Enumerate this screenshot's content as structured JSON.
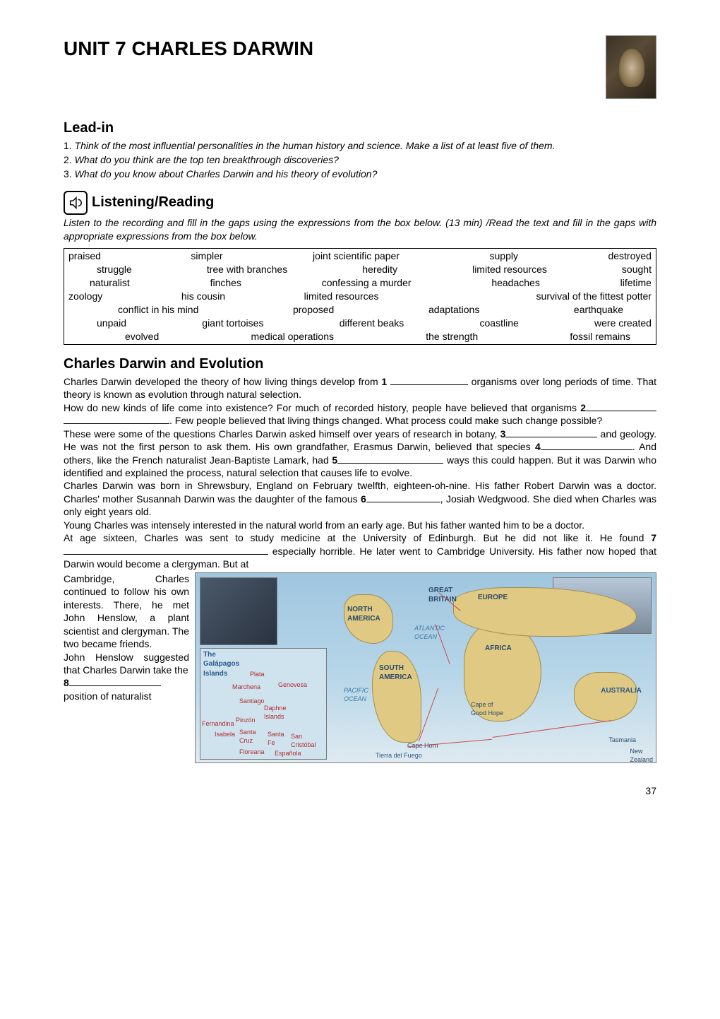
{
  "title": "UNIT 7    CHARLES DARWIN",
  "leadin": {
    "heading": "Lead-in",
    "items": [
      {
        "num": "1.",
        "text": "Think of the most influential personalities in the human history and science. Make a list of at least five of them."
      },
      {
        "num": "2.",
        "text": "What do you think are the top ten breakthrough discoveries?"
      },
      {
        "num": "3.",
        "text": "What do you know about Charles Darwin and his theory of evolution?"
      }
    ]
  },
  "listening": {
    "heading": "Listening/Reading",
    "intro": "Listen to the recording and fill in the gaps using the expressions from the box below. (13 min) /Read the text and fill in the gaps with appropriate expressions from the box below."
  },
  "wordbox": {
    "rows": [
      [
        "praised",
        "simpler",
        "joint scientific paper",
        "supply",
        "destroyed"
      ],
      [
        "struggle",
        "tree with branches",
        "heredity",
        "limited resources",
        "sought"
      ],
      [
        "naturalist",
        "finches",
        "confessing a murder",
        "headaches",
        "lifetime"
      ],
      [
        "zoology",
        "his cousin",
        "limited resources",
        "",
        "survival of the fittest  potter"
      ],
      [
        "",
        "conflict in his mind",
        "proposed",
        "adaptations",
        "earthquake"
      ],
      [
        "unpaid",
        "giant tortoises",
        "different beaks",
        "coastline",
        "were    created"
      ],
      [
        "",
        "evolved",
        "medical operations",
        "the strength",
        "fossil remains"
      ]
    ]
  },
  "article": {
    "heading": "Charles Darwin and Evolution",
    "p1a": "Charles Darwin developed the theory of how living things develop from ",
    "n1": "1",
    "p1b": " organisms over long periods of time. That theory is known as evolution through natural selection.",
    "p2a": "How do new kinds of life come into existence?  For much of recorded history, people have believed that organisms ",
    "n2": "2",
    "p2b": ". Few people believed that living things changed.  What process could make such change possible?",
    "p3a": "These were some of the questions Charles Darwin asked himself over years of research in botany, ",
    "n3": "3",
    "p3b": " and geology. He was not the first person to ask them.  His own grandfather, Erasmus Darwin, believed that species ",
    "n4": "4",
    "p3c": ". And others, like the French naturalist Jean-Baptiste Lamark, had ",
    "n5": "5",
    "p3d": " ways this could happen. But it was Darwin who identified and explained the process, natural selection that causes life to evolve.",
    "p4a": "Charles Darwin was born in Shrewsbury, England on February twelfth, eighteen-oh-nine. His father Robert Darwin was a doctor. Charles' mother Susannah Darwin was the daughter of the famous ",
    "n6": "6",
    "p4b": ", Josiah Wedgwood. She died when Charles was only eight years old.",
    "p5": "Young Charles was intensely interested in the natural world from an early age.  But his father wanted him to be a doctor.",
    "p6a": "At age sixteen, Charles was sent to study medicine at the University of Edinburgh. But he did not like it.  He found ",
    "n7": "7",
    "p6b": " especially horrible.  He later went to Cambridge University.  His father now hoped that Darwin would become a clergyman. But at ",
    "leftcol_a": "Cambridge, Charles continued to follow his own interests.  There, he met John Henslow, a plant scientist and clergyman. The two became friends.",
    "leftcol_b": "John Henslow suggested that Charles Darwin take the",
    "n8": "8",
    "leftcol_c": "position of naturalist"
  },
  "map": {
    "labels": {
      "great_britain": "GREAT\nBRITAIN",
      "europe": "EUROPE",
      "north_america": "NORTH\nAMERICA",
      "atlantic": "ATLANTIC\nOCEAN",
      "africa": "AFRICA",
      "south_america": "SOUTH\nAMERICA",
      "pacific": "PACIFIC\nOCEAN",
      "australia": "AUSTRALIA",
      "cape_of": "Cape of\nGood Hope",
      "cape_horn": "Cape Horn",
      "tierra": "Tierra del Fuego",
      "tasmania": "Tasmania",
      "new_zealand": "New\nZealand",
      "galapagos": "The\nGalápagos\nIslands",
      "plata": "Plata",
      "marchena": "Marchena",
      "genovesa": "Genovesa",
      "santiago": "Santiago",
      "daphne": "Daphne\nIslands",
      "pinzon": "Pinzón",
      "fernandina": "Fernandina",
      "isabela": "Isabela",
      "santa_cruz": "Santa\nCruz",
      "santa_fe": "Santa\nFe",
      "san_cristobal": "San\nCristóbal",
      "floreana": "Floreana",
      "espanola": "Española"
    },
    "colors": {
      "ocean_top": "#9fc6e0",
      "ocean_bottom": "#dfeaf0",
      "land": "#e0c982",
      "land_border": "#a38b4e",
      "route": "#c94a4a",
      "label": "#2a4a6a",
      "label_red": "#b02a2a"
    }
  },
  "pagenum": "37"
}
